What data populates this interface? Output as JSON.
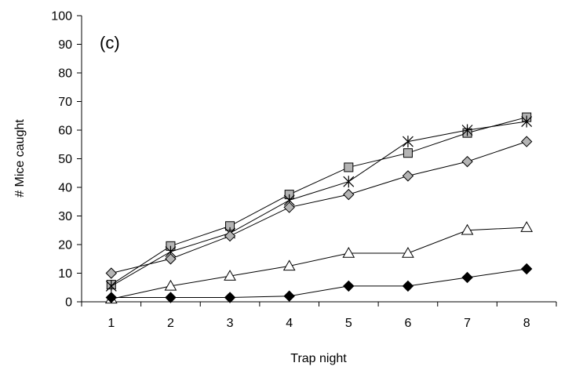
{
  "chart_data": {
    "type": "line",
    "panel_label": "(c)",
    "xlabel": "Trap night",
    "ylabel": "# Mice caught",
    "x": [
      1,
      2,
      3,
      4,
      5,
      6,
      7,
      8
    ],
    "x_ticks": [
      "1",
      "2",
      "3",
      "4",
      "5",
      "6",
      "7",
      "8"
    ],
    "y_ticks": [
      "0",
      "10",
      "20",
      "30",
      "40",
      "50",
      "60",
      "70",
      "80",
      "90",
      "100"
    ],
    "ylim": [
      0,
      100
    ],
    "grid": false,
    "legend": "none",
    "series": [
      {
        "marker": "square",
        "color": "#b4b4b4",
        "values": [
          6,
          19.5,
          26.5,
          37.5,
          47,
          52,
          59,
          64.5
        ]
      },
      {
        "marker": "star",
        "color": "#000000",
        "values": [
          5.5,
          17.5,
          24,
          35.5,
          42,
          56,
          60,
          63
        ]
      },
      {
        "marker": "diamond",
        "color": "#b4b4b4",
        "values": [
          10,
          15,
          23,
          33,
          37.5,
          44,
          49,
          56
        ]
      },
      {
        "marker": "triangle",
        "color": "#ffffff",
        "values": [
          1,
          5.5,
          9,
          12.5,
          17,
          17,
          25,
          26
        ]
      },
      {
        "marker": "diamond",
        "color": "#000000",
        "values": [
          1.5,
          1.5,
          1.5,
          2,
          5.5,
          5.5,
          8.5,
          11.5
        ]
      }
    ]
  }
}
